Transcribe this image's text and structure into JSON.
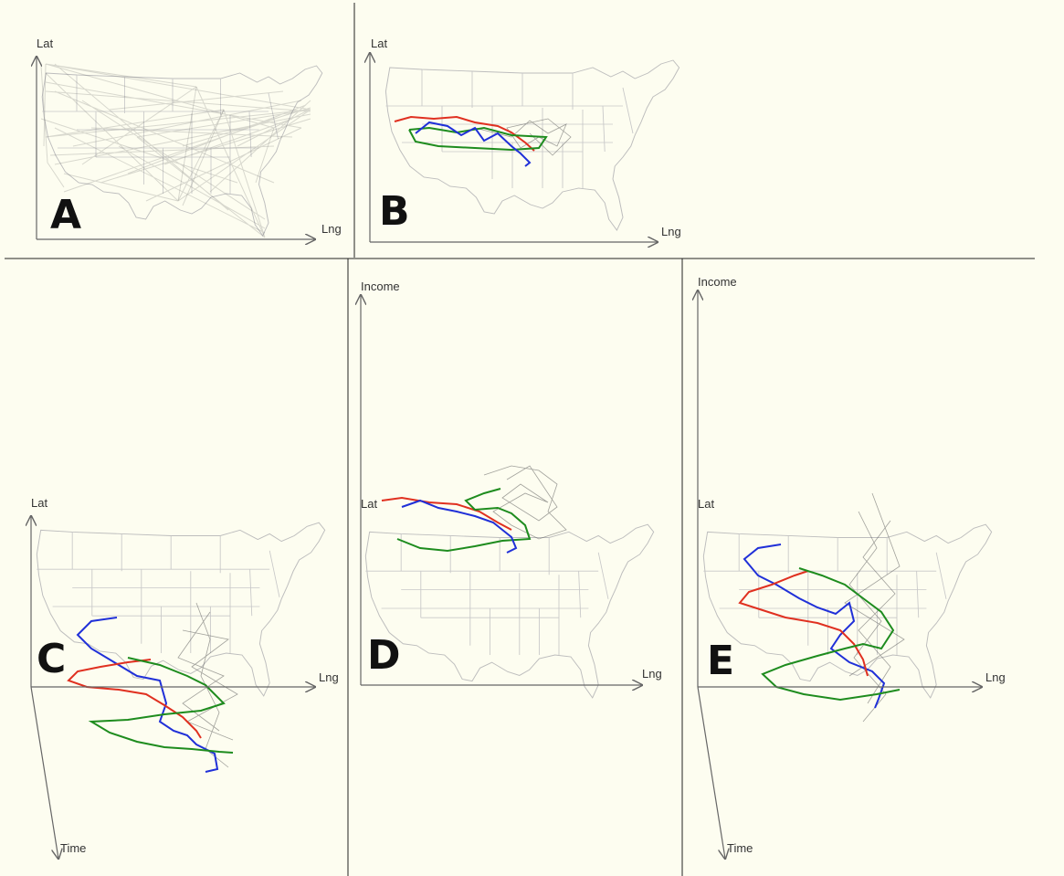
{
  "panels": [
    {
      "id": "A",
      "label": "A",
      "x_axis": "Lng",
      "y_axis": "Lat"
    },
    {
      "id": "B",
      "label": "B",
      "x_axis": "Lng",
      "y_axis": "Lat"
    },
    {
      "id": "C",
      "label": "C",
      "x_axis": "Lng",
      "y_axis": "Lat",
      "z_axis": "Time"
    },
    {
      "id": "D",
      "label": "D",
      "x_axis": "Lng",
      "y_axis": "Lat",
      "z_axis": "Income"
    },
    {
      "id": "E",
      "label": "E",
      "x_axis": "Lng",
      "y_axis": "Lat",
      "z_axis": "Income",
      "w_axis": "Time"
    }
  ],
  "colors": {
    "background": "#fdfdf0",
    "red": "#e03020",
    "green": "#1e8c1e",
    "blue": "#2030d8",
    "network": "#555555"
  }
}
